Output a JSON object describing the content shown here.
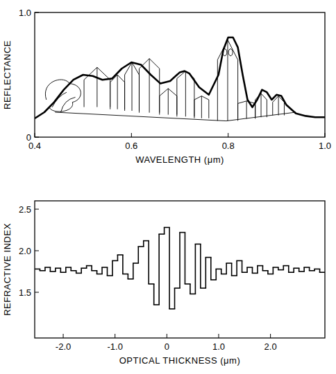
{
  "chart_data": [
    {
      "type": "line",
      "x_label": "WAVELENGTH (μm)",
      "y_label": "REFLECTANCE",
      "xlim": [
        0.4,
        1.0
      ],
      "ylim": [
        0,
        1.0
      ],
      "xticks": [
        0.4,
        0.6,
        0.8,
        {
          "value": 1.0,
          "label": "1.0"
        }
      ],
      "yticks": [
        0,
        {
          "value": 1.0,
          "label": "1.0"
        }
      ],
      "x": [
        0.4,
        0.42,
        0.44,
        0.46,
        0.48,
        0.5,
        0.52,
        0.54,
        0.56,
        0.58,
        0.6,
        0.62,
        0.64,
        0.66,
        0.68,
        0.7,
        0.71,
        0.72,
        0.74,
        0.76,
        0.78,
        0.79,
        0.8,
        0.81,
        0.82,
        0.83,
        0.84,
        0.85,
        0.86,
        0.87,
        0.88,
        0.89,
        0.9,
        0.91,
        0.92,
        0.94,
        0.96,
        0.98,
        1.0
      ],
      "series": [
        {
          "color": "#000000",
          "values": [
            0.15,
            0.2,
            0.28,
            0.38,
            0.46,
            0.5,
            0.49,
            0.46,
            0.47,
            0.55,
            0.6,
            0.58,
            0.5,
            0.43,
            0.45,
            0.52,
            0.53,
            0.51,
            0.4,
            0.34,
            0.5,
            0.7,
            0.8,
            0.8,
            0.72,
            0.5,
            0.3,
            0.24,
            0.3,
            0.38,
            0.36,
            0.3,
            0.34,
            0.33,
            0.26,
            0.19,
            0.17,
            0.16,
            0.16
          ]
        }
      ]
    },
    {
      "type": "step",
      "x_label": "OPTICAL THICKNESS (μm)",
      "y_label": "REFRACTIVE INDEX",
      "xlim": [
        -2.55,
        3.05
      ],
      "ylim": [
        0.95,
        2.6
      ],
      "xticks": [
        {
          "value": -2.0,
          "label": "-2.0"
        },
        {
          "value": -1.0,
          "label": "-1.0"
        },
        0,
        {
          "value": 1.0,
          "label": "1.0"
        },
        {
          "value": 2.0,
          "label": "2.0"
        }
      ],
      "yticks": [
        1.5,
        {
          "value": 2.0,
          "label": "2.0"
        },
        2.5
      ],
      "x": [
        -2.55,
        -2.45,
        -2.35,
        -2.25,
        -2.15,
        -2.05,
        -1.95,
        -1.85,
        -1.75,
        -1.65,
        -1.55,
        -1.45,
        -1.35,
        -1.25,
        -1.15,
        -1.05,
        -0.95,
        -0.85,
        -0.75,
        -0.65,
        -0.55,
        -0.45,
        -0.35,
        -0.25,
        -0.15,
        -0.05,
        0.05,
        0.15,
        0.25,
        0.35,
        0.45,
        0.55,
        0.65,
        0.75,
        0.85,
        0.95,
        1.05,
        1.15,
        1.25,
        1.35,
        1.45,
        1.55,
        1.65,
        1.75,
        1.85,
        1.95,
        2.05,
        2.15,
        2.25,
        2.35,
        2.45,
        2.55,
        2.65,
        2.75,
        2.85,
        2.95
      ],
      "series": [
        {
          "color": "#000000",
          "values": [
            1.78,
            1.76,
            1.8,
            1.75,
            1.79,
            1.74,
            1.8,
            1.76,
            1.73,
            1.79,
            1.82,
            1.76,
            1.72,
            1.8,
            1.7,
            1.88,
            1.95,
            1.72,
            1.66,
            1.85,
            2.05,
            2.12,
            1.6,
            1.35,
            2.2,
            2.28,
            1.3,
            1.55,
            2.22,
            1.6,
            1.48,
            2.08,
            1.55,
            1.92,
            1.65,
            1.78,
            1.72,
            1.85,
            1.7,
            1.88,
            1.74,
            1.8,
            1.73,
            1.82,
            1.76,
            1.72,
            1.8,
            1.77,
            1.82,
            1.74,
            1.79,
            1.75,
            1.8,
            1.76,
            1.78,
            1.74
          ]
        }
      ]
    }
  ]
}
